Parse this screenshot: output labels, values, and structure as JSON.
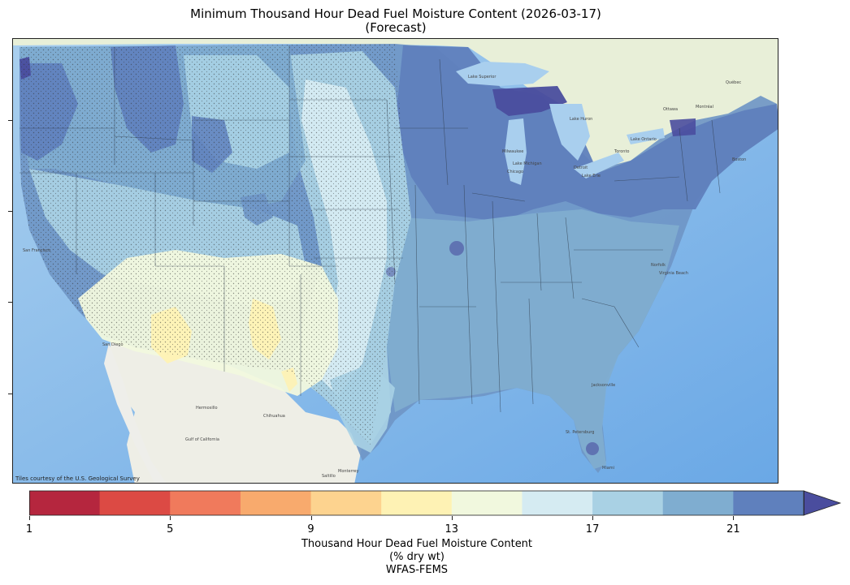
{
  "title": {
    "line1": "Minimum Thousand Hour Dead Fuel Moisture Content (2026-03-17)",
    "line2": "(Forecast)"
  },
  "attribution": "Tiles courtesy of the U.S. Geological Survey",
  "colorbar": {
    "label_line1": "Thousand Hour Dead Fuel Moisture Content",
    "label_line2": "(% dry wt)",
    "label_line3": "WFAS-FEMS",
    "min": 1,
    "max": 23,
    "step": 2,
    "tick_values": [
      1,
      5,
      9,
      13,
      17,
      21
    ],
    "tick_labels": [
      "1",
      "5",
      "9",
      "13",
      "17",
      "21"
    ],
    "bin_colors": [
      "#b5263e",
      "#dc4a44",
      "#f07a5c",
      "#f8aa6d",
      "#fdd38f",
      "#fef2b4",
      "#f1f8de",
      "#d5ebf2",
      "#a9d1e4",
      "#7fadd0",
      "#5f80bd"
    ],
    "extend_color": "#4a4d9e",
    "extend": "max"
  },
  "map_labels": {
    "lake_superior": "Lake Superior",
    "lake_huron": "Lake Huron",
    "lake_michigan": "Lake Michigan",
    "lake_ontario": "Lake Ontario",
    "lake_erie": "Lake Erie",
    "gulf_california": "Gulf of California",
    "ottawa": "Ottawa",
    "montreal": "Montréal",
    "quebec": "Québec",
    "toronto": "Toronto",
    "milwaukee": "Milwaukee",
    "chicago": "Chicago",
    "detroit": "Detroit",
    "boston": "Boston",
    "san_francisco": "San Francisco",
    "san_diego": "San Diego",
    "hermosillo": "Hermosillo",
    "chihuahua": "Chihuahua",
    "monterrey": "Monterrey",
    "saltillo": "Saltillo",
    "jacksonville": "Jacksonville",
    "tampa": "St. Petersburg",
    "miami": "Miami",
    "norfolk": "Norfolk",
    "virginia_beach": "Virginia Beach"
  }
}
